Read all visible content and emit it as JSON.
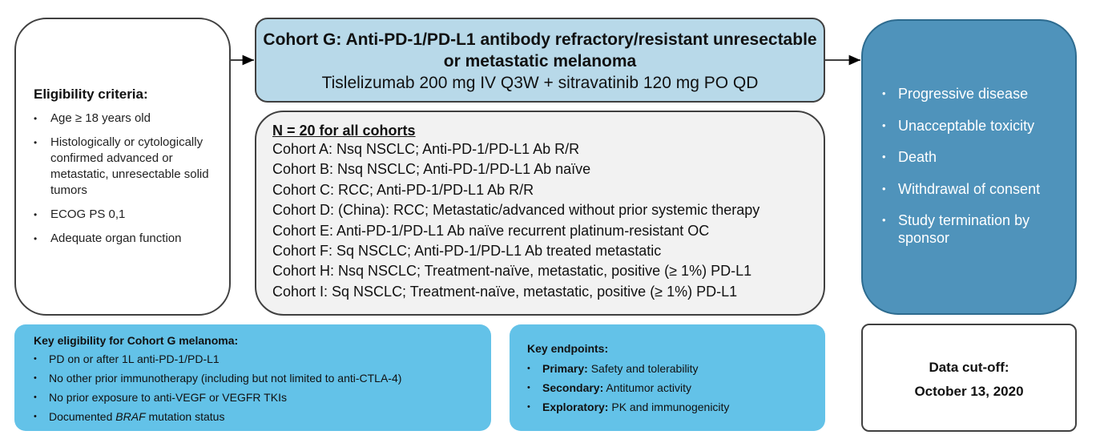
{
  "eligibility": {
    "title": "Eligibility criteria:",
    "items": [
      "Age ≥ 18 years old",
      "Histologically or cytologically confirmed advanced or metastatic, unresectable solid tumors",
      "ECOG PS 0,1",
      "Adequate organ function"
    ]
  },
  "cohort_g": {
    "title": "Cohort G: Anti-PD-1/PD-L1  antibody refractory/resistant unresectable or metastatic  melanoma",
    "regimen": "Tislelizumab  200 mg IV Q3W + sitravatinib  120 mg PO QD"
  },
  "cohorts": {
    "heading": "N = 20 for all cohorts",
    "items": [
      "Cohort A: Nsq NSCLC; Anti-PD-1/PD-L1 Ab R/R",
      "Cohort B: Nsq NSCLC; Anti-PD-1/PD-L1 Ab naïve",
      "Cohort C: RCC; Anti-PD-1/PD-L1 Ab R/R",
      "Cohort D: (China): RCC; Metastatic/advanced without prior systemic therapy",
      "Cohort E: Anti-PD-1/PD-L1 Ab  naïve recurrent platinum-resistant OC",
      "Cohort F: Sq NSCLC; Anti-PD-1/PD-L1 Ab treated metastatic",
      "Cohort H: Nsq NSCLC; Treatment-naïve, metastatic, positive (≥ 1%) PD-L1",
      "Cohort I: Sq NSCLC; Treatment-naïve, metastatic, positive (≥ 1%) PD-L1"
    ]
  },
  "outcomes": {
    "items": [
      "Progressive disease",
      "Unacceptable toxicity",
      "Death",
      "Withdrawal of consent",
      "Study termination by sponsor"
    ]
  },
  "key_eligibility": {
    "title": "Key eligibility for Cohort G melanoma:",
    "items": [
      {
        "pre": "PD  on or after 1L anti-PD-1/PD-L1",
        "em": "",
        "post": ""
      },
      {
        "pre": "No other prior immunotherapy  (including but not limited to anti-CTLA-4)",
        "em": "",
        "post": ""
      },
      {
        "pre": "No prior exposure to anti-VEGF  or VEGFR  TKIs",
        "em": "",
        "post": ""
      },
      {
        "pre": "Documented ",
        "em": "BRAF",
        "post": " mutation  status"
      }
    ]
  },
  "endpoints": {
    "title": "Key endpoints:",
    "items": [
      {
        "label": "Primary:",
        "value": " Safety and tolerability"
      },
      {
        "label": "Secondary:",
        "value": " Antitumor  activity"
      },
      {
        "label": "Exploratory:",
        "value": " PK and immunogenicity"
      }
    ]
  },
  "cutoff": {
    "label": "Data cut-off:",
    "date": "October 13, 2020"
  },
  "colors": {
    "cohort_g_fill": "#b8d9e9",
    "outcomes_fill": "#4f93bb",
    "key_boxes_fill": "#63c2e8",
    "cohorts_fill": "#f2f2f2"
  }
}
